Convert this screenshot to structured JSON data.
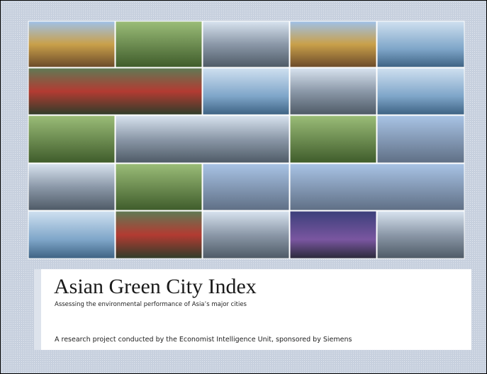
{
  "cover": {
    "title": "Asian Green City Index",
    "subtitle": "Assessing the environmental performance of Asia’s major cities",
    "credit": "A research project conducted by the Economist Intelligence Unit, sponsored by Siemens"
  }
}
